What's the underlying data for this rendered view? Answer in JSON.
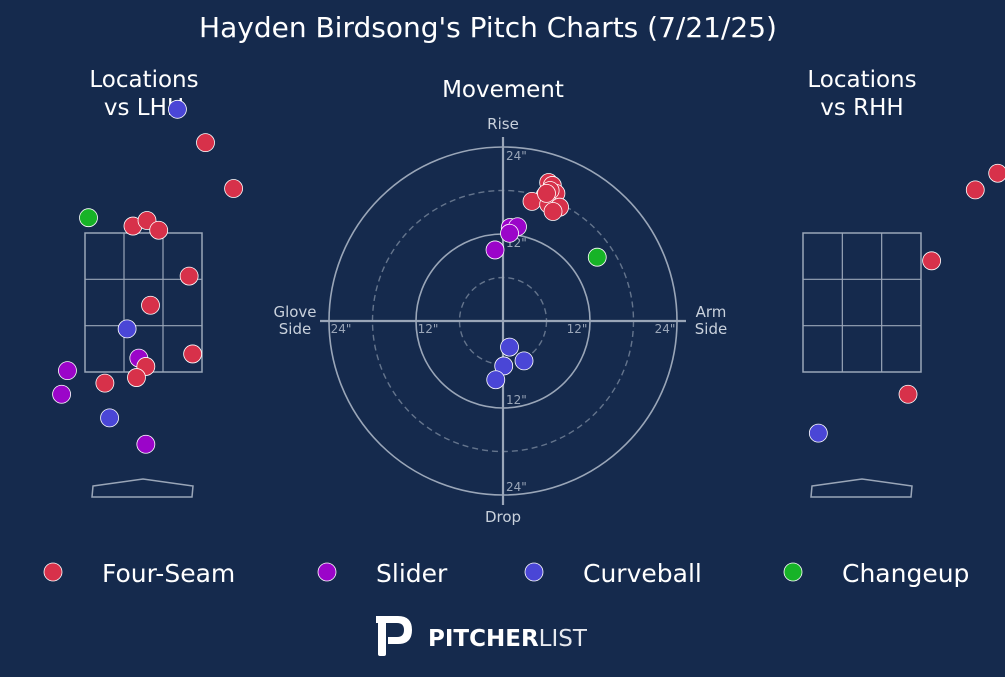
{
  "title": "Hayden Birdsong's Pitch Charts (7/21/25)",
  "colors": {
    "background": "#152a4d",
    "grid": "#9aa6b8",
    "text": "#ffffff",
    "subtext": "#c9d1dc",
    "ring_label": "#9aa6b8"
  },
  "panels": {
    "lhh_title_line1": "Locations",
    "lhh_title_line2": "vs LHH",
    "movement_title": "Movement",
    "rhh_title_line1": "Locations",
    "rhh_title_line2": "vs RHH"
  },
  "movement_axes": {
    "top": "Rise",
    "bottom": "Drop",
    "left_line1": "Glove",
    "left_line2": "Side",
    "right_line1": "Arm",
    "right_line2": "Side",
    "ring_label_inner": "12\"",
    "ring_label_outer": "24\""
  },
  "legend": [
    {
      "name": "Four-Seam",
      "color": "#d7314a"
    },
    {
      "name": "Slider",
      "color": "#9b05c9"
    },
    {
      "name": "Curveball",
      "color": "#4a46d6"
    },
    {
      "name": "Changeup",
      "color": "#17b327"
    }
  ],
  "logo": {
    "word_bold": "PITCHER",
    "word_light": "LIST"
  },
  "chart_data": [
    {
      "type": "scatter",
      "name": "locations_vs_lhh",
      "title": "Locations vs LHH",
      "units": "strike zone widths from center; zone spans x -0.5..0.5, y -0.5..0.5",
      "points": [
        {
          "pitch": "Curveball",
          "x": 0.29,
          "y": 1.39
        },
        {
          "pitch": "Four-Seam",
          "x": 0.53,
          "y": 1.15
        },
        {
          "pitch": "Four-Seam",
          "x": 0.77,
          "y": 0.82
        },
        {
          "pitch": "Changeup",
          "x": -0.47,
          "y": 0.61
        },
        {
          "pitch": "Four-Seam",
          "x": -0.09,
          "y": 0.55
        },
        {
          "pitch": "Four-Seam",
          "x": 0.03,
          "y": 0.59
        },
        {
          "pitch": "Four-Seam",
          "x": 0.13,
          "y": 0.52
        },
        {
          "pitch": "Four-Seam",
          "x": 0.39,
          "y": 0.19
        },
        {
          "pitch": "Four-Seam",
          "x": 0.06,
          "y": -0.02
        },
        {
          "pitch": "Curveball",
          "x": -0.14,
          "y": -0.19
        },
        {
          "pitch": "Four-Seam",
          "x": 0.42,
          "y": -0.37
        },
        {
          "pitch": "Slider",
          "x": -0.04,
          "y": -0.4
        },
        {
          "pitch": "Four-Seam",
          "x": 0.02,
          "y": -0.46
        },
        {
          "pitch": "Slider",
          "x": -0.65,
          "y": -0.49
        },
        {
          "pitch": "Four-Seam",
          "x": -0.33,
          "y": -0.58
        },
        {
          "pitch": "Four-Seam",
          "x": -0.06,
          "y": -0.54
        },
        {
          "pitch": "Slider",
          "x": -0.7,
          "y": -0.66
        },
        {
          "pitch": "Curveball",
          "x": -0.29,
          "y": -0.83
        },
        {
          "pitch": "Slider",
          "x": 0.02,
          "y": -1.02
        }
      ]
    },
    {
      "type": "scatter",
      "name": "movement",
      "title": "Movement",
      "units": "inches; x positive = arm side, y positive = rise",
      "rings_in": [
        6,
        12,
        18,
        24
      ],
      "xlim": [
        -24,
        24
      ],
      "ylim": [
        -24,
        24
      ],
      "points": [
        {
          "pitch": "Four-Seam",
          "x": 6.3,
          "y": 19.1
        },
        {
          "pitch": "Four-Seam",
          "x": 6.8,
          "y": 18.7
        },
        {
          "pitch": "Four-Seam",
          "x": 7.3,
          "y": 17.6
        },
        {
          "pitch": "Four-Seam",
          "x": 6.5,
          "y": 18.0
        },
        {
          "pitch": "Four-Seam",
          "x": 5.8,
          "y": 17.3
        },
        {
          "pitch": "Four-Seam",
          "x": 4.0,
          "y": 16.5
        },
        {
          "pitch": "Four-Seam",
          "x": 6.3,
          "y": 16.1
        },
        {
          "pitch": "Four-Seam",
          "x": 7.8,
          "y": 15.7
        },
        {
          "pitch": "Four-Seam",
          "x": 6.9,
          "y": 15.1
        },
        {
          "pitch": "Four-Seam",
          "x": 6.0,
          "y": 17.6
        },
        {
          "pitch": "Slider",
          "x": 1.0,
          "y": 12.9
        },
        {
          "pitch": "Slider",
          "x": 2.0,
          "y": 13.0
        },
        {
          "pitch": "Slider",
          "x": 0.9,
          "y": 12.1
        },
        {
          "pitch": "Slider",
          "x": -1.1,
          "y": 9.8
        },
        {
          "pitch": "Changeup",
          "x": 13.0,
          "y": 8.8
        },
        {
          "pitch": "Curveball",
          "x": 0.9,
          "y": -3.6
        },
        {
          "pitch": "Curveball",
          "x": 2.9,
          "y": -5.5
        },
        {
          "pitch": "Curveball",
          "x": 0.1,
          "y": -6.2
        },
        {
          "pitch": "Curveball",
          "x": -1.0,
          "y": -8.1
        }
      ]
    },
    {
      "type": "scatter",
      "name": "locations_vs_rhh",
      "title": "Locations vs RHH",
      "units": "strike zone widths from center; zone spans x -0.5..0.5, y -0.5..0.5",
      "points": [
        {
          "pitch": "Four-Seam",
          "x": 1.37,
          "y": 0.98
        },
        {
          "pitch": "Four-Seam",
          "x": 1.15,
          "y": 0.93
        },
        {
          "pitch": "Four-Seam",
          "x": 0.96,
          "y": 0.81
        },
        {
          "pitch": "Four-Seam",
          "x": 0.59,
          "y": 0.3
        },
        {
          "pitch": "Four-Seam",
          "x": 0.39,
          "y": -0.66
        },
        {
          "pitch": "Curveball",
          "x": -0.37,
          "y": -0.94
        }
      ]
    }
  ]
}
